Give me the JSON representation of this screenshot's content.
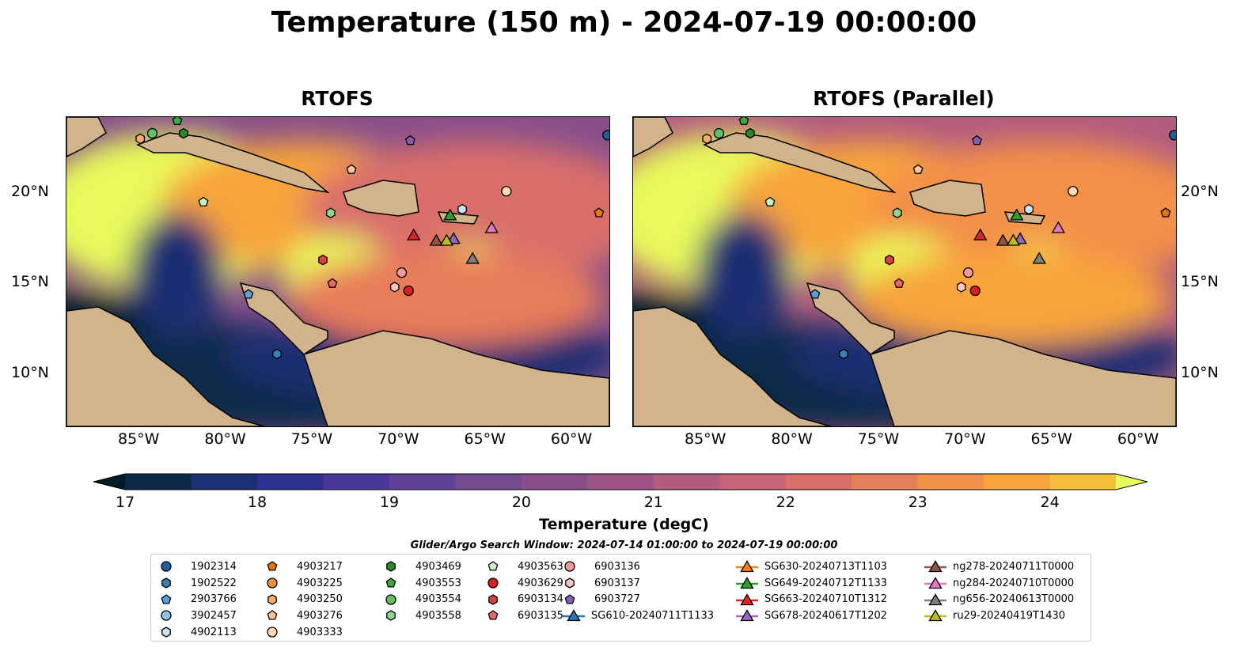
{
  "title": "Temperature (150 m) - 2024-07-19 00:00:00",
  "panels": [
    {
      "title": "RTOFS"
    },
    {
      "title": "RTOFS (Parallel)"
    }
  ],
  "map_extent": {
    "lon": [
      -89.16,
      -57.8
    ],
    "lat": [
      7.1,
      24.2
    ]
  },
  "lon_ticks": [
    {
      "v": -85,
      "label": "85°W"
    },
    {
      "v": -80,
      "label": "80°W"
    },
    {
      "v": -75,
      "label": "75°W"
    },
    {
      "v": -70,
      "label": "70°W"
    },
    {
      "v": -65,
      "label": "65°W"
    },
    {
      "v": -60,
      "label": "60°W"
    }
  ],
  "lat_ticks": [
    {
      "v": 20,
      "label": "20°N"
    },
    {
      "v": 15,
      "label": "15°N"
    },
    {
      "v": 10,
      "label": "10°N"
    }
  ],
  "colorbar": {
    "label": "Temperature (degC)",
    "min": 17,
    "max": 24.5,
    "step": 0.5,
    "ticks": [
      {
        "v": 17,
        "label": "17"
      },
      {
        "v": 18,
        "label": "18"
      },
      {
        "v": 19,
        "label": "19"
      },
      {
        "v": 20,
        "label": "20"
      },
      {
        "v": 21,
        "label": "21"
      },
      {
        "v": 22,
        "label": "22"
      },
      {
        "v": 23,
        "label": "23"
      },
      {
        "v": 24,
        "label": "24"
      }
    ],
    "colors": [
      "#04202c",
      "#0b2a4a",
      "#1b2f72",
      "#2c3391",
      "#47389a",
      "#5e4296",
      "#744b90",
      "#884f8b",
      "#9c5586",
      "#b25c80",
      "#c76478",
      "#d96e6a",
      "#e87d5a",
      "#f3904a",
      "#f8a43b",
      "#f6bf3a",
      "#f2db47",
      "#e8fa5b"
    ],
    "under": "#031b26",
    "over": "#e8fa5b"
  },
  "search_window": "Glider/Argo Search Window: 2024-07-14 01:00:00 to 2024-07-19 00:00:00",
  "legend": [
    {
      "label": "1902314",
      "shape": "circle",
      "color": "#1f5f9c",
      "lon": -57.9,
      "lat": 23.2
    },
    {
      "label": "1902522",
      "shape": "hexagon",
      "color": "#3a7fb8",
      "lon": -77.0,
      "lat": 11.1
    },
    {
      "label": "2903766",
      "shape": "pentagon",
      "color": "#5a9fd6",
      "lon": -78.65,
      "lat": 14.4
    },
    {
      "label": "3902457",
      "shape": "circle",
      "color": "#8ec4ea"
    },
    {
      "label": "4902113",
      "shape": "hexagon",
      "color": "#c9e4f7",
      "lon": -66.3,
      "lat": 19.1
    },
    {
      "label": "4903217",
      "shape": "pentagon",
      "color": "#e8720c",
      "lon": -58.4,
      "lat": 18.9
    },
    {
      "label": "4903225",
      "shape": "circle",
      "color": "#f68f3a"
    },
    {
      "label": "4903250",
      "shape": "hexagon",
      "color": "#f9ad6a",
      "lon": -84.9,
      "lat": 23.0
    },
    {
      "label": "4903276",
      "shape": "pentagon",
      "color": "#fbc494",
      "lon": -72.7,
      "lat": 21.3
    },
    {
      "label": "4903333",
      "shape": "circle",
      "color": "#fdd9b5",
      "lon": -63.75,
      "lat": 20.1
    },
    {
      "label": "4903469",
      "shape": "hexagon",
      "color": "#2a8a2a",
      "lon": -82.4,
      "lat": 23.3
    },
    {
      "label": "4903553",
      "shape": "pentagon",
      "color": "#3eaa3e",
      "lon": -82.76,
      "lat": 24.0
    },
    {
      "label": "4903554",
      "shape": "circle",
      "color": "#62c262",
      "lon": -84.2,
      "lat": 23.3
    },
    {
      "label": "4903558",
      "shape": "hexagon",
      "color": "#8ed88e",
      "lon": -73.9,
      "lat": 18.9
    },
    {
      "label": "4903563",
      "shape": "pentagon",
      "color": "#c8f2c4",
      "lon": -81.25,
      "lat": 19.5
    },
    {
      "label": "4903629",
      "shape": "circle",
      "color": "#d62020",
      "lon": -69.4,
      "lat": 14.6
    },
    {
      "label": "6903134",
      "shape": "hexagon",
      "color": "#dc4040",
      "lon": -74.35,
      "lat": 16.3
    },
    {
      "label": "6903135",
      "shape": "pentagon",
      "color": "#e86868",
      "lon": -73.8,
      "lat": 15.0
    },
    {
      "label": "6903136",
      "shape": "circle",
      "color": "#f09a9a",
      "lon": -69.8,
      "lat": 15.6
    },
    {
      "label": "6903137",
      "shape": "hexagon",
      "color": "#f9c4c4",
      "lon": -70.2,
      "lat": 14.8
    },
    {
      "label": "6903727",
      "shape": "pentagon",
      "color": "#8a5cb0",
      "lon": -69.3,
      "lat": 22.9
    },
    {
      "label": "SG610-20240711T1133",
      "shape": "triangle",
      "color": "#1f77b4"
    },
    {
      "label": "SG630-20240713T1103",
      "shape": "triangle",
      "color": "#ff7f0e"
    },
    {
      "label": "SG649-20240712T1133",
      "shape": "triangle",
      "color": "#2ca02c",
      "lon": -67.0,
      "lat": 18.8
    },
    {
      "label": "SG663-20240710T1312",
      "shape": "triangle",
      "color": "#d62728",
      "lon": -69.1,
      "lat": 17.7
    },
    {
      "label": "SG678-20240617T1202",
      "shape": "triangle",
      "color": "#9467bd",
      "lon": -66.8,
      "lat": 17.5
    },
    {
      "label": "ng278-20240711T0000",
      "shape": "triangle",
      "color": "#8c564b",
      "lon": -67.8,
      "lat": 17.4
    },
    {
      "label": "ng284-20240710T0000",
      "shape": "triangle",
      "color": "#e377c2",
      "lon": -64.6,
      "lat": 18.1
    },
    {
      "label": "ng656-20240613T0000",
      "shape": "triangle",
      "color": "#7f7f7f",
      "lon": -65.7,
      "lat": 16.4
    },
    {
      "label": "ru29-20240419T1430",
      "shape": "triangle",
      "color": "#bcbd22",
      "lon": -67.2,
      "lat": 17.4
    }
  ]
}
